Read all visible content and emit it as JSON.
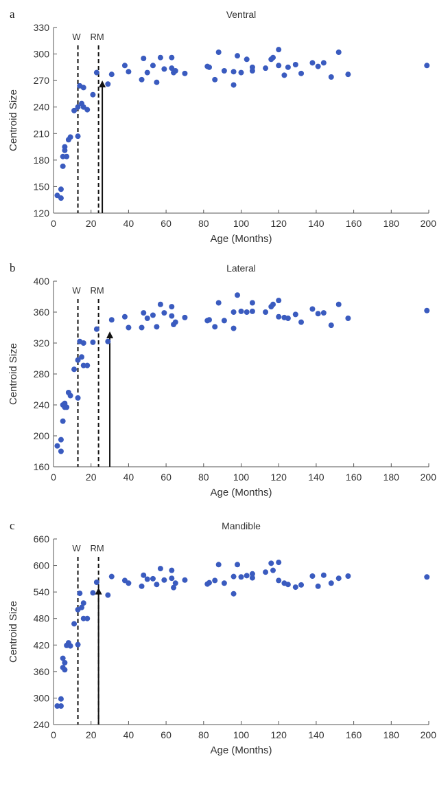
{
  "chart_data": [
    {
      "type": "scatter",
      "panel_label": "a",
      "title": "Ventral",
      "xlabel": "Age (Months)",
      "ylabel": "Centroid Size",
      "xlim": [
        0,
        200
      ],
      "ylim": [
        120,
        330
      ],
      "xticks": [
        0,
        20,
        40,
        60,
        80,
        100,
        120,
        140,
        160,
        180,
        200
      ],
      "yticks": [
        120,
        150,
        180,
        210,
        240,
        270,
        300,
        330
      ],
      "point_color": "#3a5bbf",
      "vlines": [
        {
          "label": "W",
          "x": 13,
          "style": "dashed"
        },
        {
          "label": "RM",
          "x": 24,
          "style": "dashed"
        }
      ],
      "arrow": {
        "x": 26,
        "y_from": 120,
        "y_to": 270
      },
      "series": [
        {
          "x": [
            2,
            4,
            4,
            5,
            5,
            6,
            6,
            7,
            8,
            9,
            11,
            13,
            13,
            14,
            15,
            16,
            16,
            18,
            21,
            23,
            29,
            31,
            38,
            40,
            47,
            48,
            50,
            53,
            55,
            57,
            59,
            63,
            63,
            64,
            65,
            70,
            82,
            83,
            86,
            88,
            91,
            96,
            96,
            98,
            100,
            103,
            106,
            106,
            113,
            116,
            117,
            120,
            120,
            123,
            125,
            129,
            132,
            138,
            141,
            144,
            148,
            152,
            157,
            199
          ],
          "y": [
            140,
            147,
            137,
            173,
            184,
            191,
            195,
            184,
            203,
            206,
            236,
            207,
            240,
            264,
            244,
            262,
            240,
            237,
            254,
            279,
            266,
            277,
            287,
            280,
            271,
            295,
            279,
            287,
            268,
            296,
            283,
            296,
            284,
            279,
            281,
            278,
            286,
            285,
            271,
            302,
            281,
            280,
            265,
            298,
            279,
            294,
            285,
            281,
            284,
            294,
            296,
            305,
            287,
            276,
            285,
            288,
            278,
            290,
            286,
            290,
            274,
            302,
            277,
            287
          ]
        }
      ]
    },
    {
      "type": "scatter",
      "panel_label": "b",
      "title": "Lateral",
      "xlabel": "Age (Months)",
      "ylabel": "Centroid Size",
      "xlim": [
        0,
        200
      ],
      "ylim": [
        160,
        400
      ],
      "xticks": [
        0,
        20,
        40,
        60,
        80,
        100,
        120,
        140,
        160,
        180,
        200
      ],
      "yticks": [
        160,
        200,
        240,
        280,
        320,
        360,
        400
      ],
      "point_color": "#3a5bbf",
      "vlines": [
        {
          "label": "W",
          "x": 13,
          "style": "dashed"
        },
        {
          "label": "RM",
          "x": 24,
          "style": "dashed"
        }
      ],
      "arrow": {
        "x": 30,
        "y_from": 160,
        "y_to": 335
      },
      "series": [
        {
          "x": [
            2,
            4,
            4,
            5,
            5,
            6,
            6,
            7,
            8,
            9,
            11,
            13,
            13,
            14,
            15,
            16,
            16,
            18,
            21,
            23,
            29,
            31,
            38,
            40,
            47,
            48,
            50,
            53,
            55,
            57,
            59,
            63,
            63,
            64,
            65,
            70,
            82,
            83,
            86,
            88,
            91,
            96,
            96,
            98,
            100,
            103,
            106,
            106,
            113,
            116,
            117,
            120,
            120,
            123,
            125,
            129,
            132,
            138,
            141,
            144,
            148,
            152,
            157,
            199
          ],
          "y": [
            187,
            195,
            180,
            219,
            240,
            237,
            242,
            237,
            256,
            252,
            286,
            249,
            298,
            322,
            302,
            320,
            291,
            291,
            321,
            338,
            322,
            350,
            354,
            340,
            340,
            359,
            352,
            356,
            341,
            370,
            359,
            367,
            355,
            344,
            347,
            353,
            349,
            350,
            341,
            372,
            349,
            360,
            339,
            382,
            361,
            360,
            361,
            372,
            360,
            367,
            370,
            375,
            354,
            353,
            352,
            357,
            347,
            364,
            358,
            359,
            343,
            370,
            352,
            362
          ]
        }
      ]
    },
    {
      "type": "scatter",
      "panel_label": "c",
      "title": "Mandible",
      "xlabel": "Age (Months)",
      "ylabel": "Centroid Size",
      "xlim": [
        0,
        200
      ],
      "ylim": [
        240,
        660
      ],
      "xticks": [
        0,
        20,
        40,
        60,
        80,
        100,
        120,
        140,
        160,
        180,
        200
      ],
      "yticks": [
        240,
        300,
        360,
        420,
        480,
        540,
        600,
        660
      ],
      "point_color": "#3a5bbf",
      "vlines": [
        {
          "label": "W",
          "x": 13,
          "style": "dashed"
        },
        {
          "label": "RM",
          "x": 24,
          "style": "dashed"
        }
      ],
      "arrow": {
        "x": 24,
        "y_from": 240,
        "y_to": 550
      },
      "series": [
        {
          "x": [
            2,
            4,
            4,
            5,
            5,
            6,
            6,
            7,
            8,
            9,
            11,
            13,
            13,
            14,
            15,
            16,
            16,
            18,
            21,
            23,
            29,
            31,
            38,
            40,
            47,
            48,
            50,
            53,
            55,
            57,
            59,
            63,
            63,
            64,
            65,
            70,
            82,
            83,
            86,
            88,
            91,
            96,
            96,
            98,
            100,
            103,
            106,
            106,
            113,
            116,
            117,
            120,
            120,
            123,
            125,
            129,
            132,
            138,
            141,
            144,
            148,
            152,
            157,
            199
          ],
          "y": [
            282,
            282,
            298,
            369,
            390,
            364,
            380,
            419,
            425,
            418,
            468,
            421,
            500,
            537,
            505,
            515,
            480,
            480,
            538,
            562,
            533,
            575,
            566,
            560,
            553,
            578,
            569,
            570,
            557,
            593,
            567,
            589,
            571,
            550,
            560,
            567,
            558,
            561,
            566,
            602,
            560,
            575,
            536,
            602,
            574,
            577,
            581,
            572,
            585,
            605,
            589,
            607,
            566,
            560,
            557,
            551,
            556,
            576,
            553,
            578,
            560,
            571,
            576,
            574
          ]
        }
      ]
    }
  ]
}
